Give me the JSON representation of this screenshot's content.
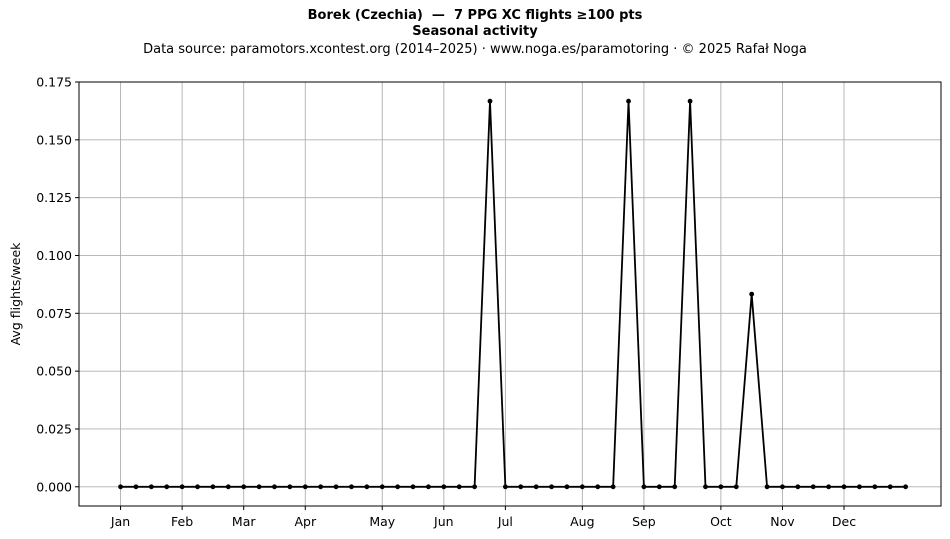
{
  "chart_data": {
    "type": "line",
    "title": "Borek (Czechia)  —  7 PPG XC flights ≥100 pts",
    "subtitle": "Seasonal activity",
    "source_line": "Data source: paramotors.xcontest.org (2014–2025)  ·  www.noga.es/paramotoring  ·  © 2025 Rafał Noga",
    "xlabel": "",
    "ylabel": "Avg flights/week",
    "x_unit": "week of year",
    "xlim": [
      -1.7,
      54.3
    ],
    "ylim": [
      -0.0083,
      0.175
    ],
    "grid": true,
    "line_color": "#000000",
    "grid_color": "#b0b0b0",
    "month_ticks": [
      {
        "label": "Jan",
        "week": 1
      },
      {
        "label": "Feb",
        "week": 5
      },
      {
        "label": "Mar",
        "week": 9
      },
      {
        "label": "Apr",
        "week": 13
      },
      {
        "label": "May",
        "week": 18
      },
      {
        "label": "Jun",
        "week": 22
      },
      {
        "label": "Jul",
        "week": 26
      },
      {
        "label": "Aug",
        "week": 31
      },
      {
        "label": "Sep",
        "week": 35
      },
      {
        "label": "Oct",
        "week": 40
      },
      {
        "label": "Nov",
        "week": 44
      },
      {
        "label": "Dec",
        "week": 48
      }
    ],
    "y_ticks": [
      {
        "label": "0.000",
        "value": 0
      },
      {
        "label": "0.025",
        "value": 0.025
      },
      {
        "label": "0.050",
        "value": 0.05
      },
      {
        "label": "0.075",
        "value": 0.075
      },
      {
        "label": "0.100",
        "value": 0.1
      },
      {
        "label": "0.125",
        "value": 0.125
      },
      {
        "label": "0.150",
        "value": 0.15
      },
      {
        "label": "0.175",
        "value": 0.175
      }
    ],
    "x": [
      1,
      2,
      3,
      4,
      5,
      6,
      7,
      8,
      9,
      10,
      11,
      12,
      13,
      14,
      15,
      16,
      17,
      18,
      19,
      20,
      21,
      22,
      23,
      24,
      25,
      26,
      27,
      28,
      29,
      30,
      31,
      32,
      33,
      34,
      35,
      36,
      37,
      38,
      39,
      40,
      41,
      42,
      43,
      44,
      45,
      46,
      47,
      48,
      49,
      50,
      51,
      52
    ],
    "series": [
      {
        "values": [
          0,
          0,
          0,
          0,
          0,
          0,
          0,
          0,
          0,
          0,
          0,
          0,
          0,
          0,
          0,
          0,
          0,
          0,
          0,
          0,
          0,
          0,
          0,
          0,
          0.1667,
          0,
          0,
          0,
          0,
          0,
          0,
          0,
          0,
          0.1667,
          0,
          0,
          0,
          0.1667,
          0,
          0,
          0,
          0.0833,
          0,
          0,
          0,
          0,
          0,
          0,
          0,
          0,
          0,
          0
        ]
      }
    ]
  }
}
